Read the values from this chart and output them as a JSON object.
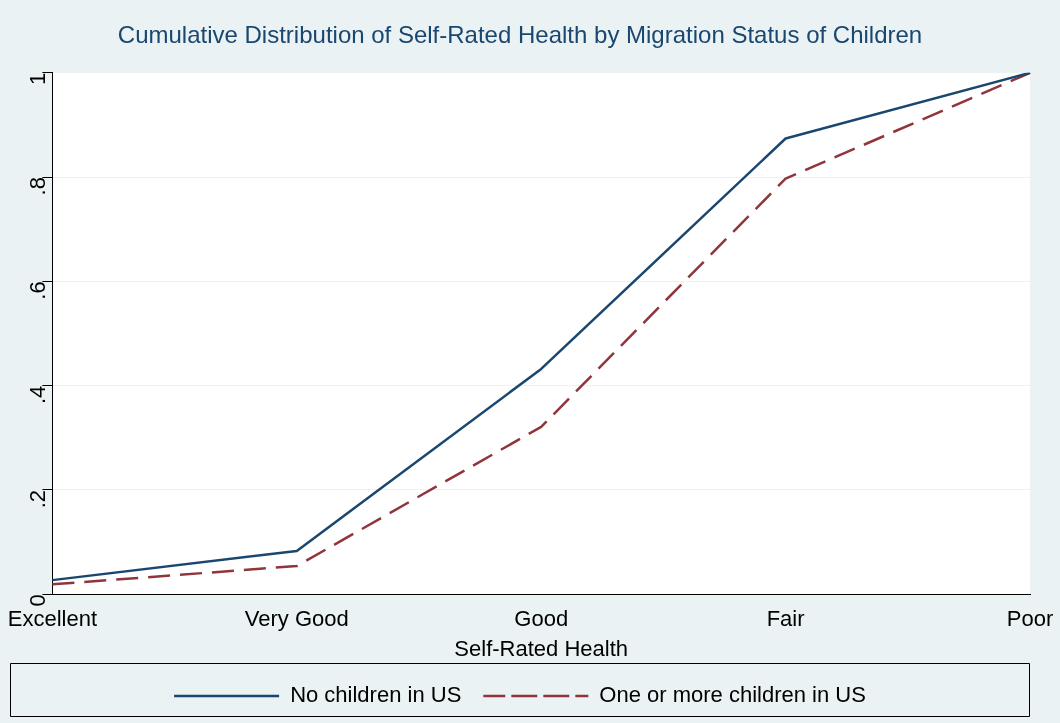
{
  "chart_data": {
    "type": "line",
    "title": "Cumulative Distribution of Self-Rated Health by Migration Status of Children",
    "xlabel": "Self-Rated Health",
    "categories": [
      "Excellent",
      "Very Good",
      "Good",
      "Fair",
      "Poor"
    ],
    "series": [
      {
        "name": "No children in US",
        "color": "#1a476f",
        "values": [
          0.027,
          0.083,
          0.432,
          0.874,
          1
        ],
        "line_style": "solid"
      },
      {
        "name": "One or more children in US",
        "color": "#90353b",
        "values": [
          0.019,
          0.054,
          0.321,
          0.797,
          1
        ],
        "line_style": "dashed"
      }
    ],
    "ylim": [
      0,
      1
    ],
    "yticks": [
      {
        "value": 0,
        "label": "0"
      },
      {
        "value": 0.2,
        "label": ".2"
      },
      {
        "value": 0.4,
        "label": ".4"
      },
      {
        "value": 0.6,
        "label": ".6"
      },
      {
        "value": 0.8,
        "label": ".8"
      },
      {
        "value": 1,
        "label": "1"
      }
    ],
    "grid": "y",
    "legend": "bottom",
    "marker": "none"
  }
}
